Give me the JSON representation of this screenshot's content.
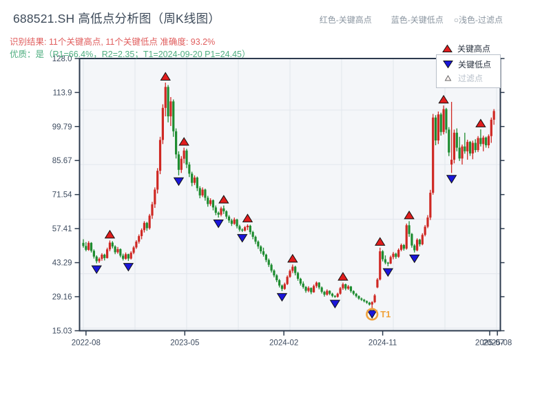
{
  "header": {
    "title": "688521.SH 高低点分析图（周K线图）",
    "subtitle_result": "识别结果: 11个关键高点, 11个关键低点  准确度: 93.2%",
    "subtitle_quality": "优质：是（R1=66.4%，R2=2.35；T1=2024-09-20 P1=24.45）",
    "legend_hint": {
      "high": "红色-关键高点",
      "low": "蓝色-关键低点",
      "filter": "○浅色-过滤点"
    }
  },
  "legend": {
    "items": [
      {
        "label": "关键高点",
        "marker": "triangle-up",
        "color": "#e11d1d"
      },
      {
        "label": "关键低点",
        "marker": "triangle-down",
        "color": "#1a16d9"
      },
      {
        "label": "过滤点",
        "marker": "triangle-up-hollow",
        "color": "#fdf4f2"
      }
    ]
  },
  "chart_data": {
    "type": "candlestick",
    "freq": "weekly",
    "period_start": "2022-08",
    "period_end": "2025-07",
    "ylim": [
      15.03,
      128.0
    ],
    "y_ticks": [
      {
        "v": 128.0,
        "label": "128.0"
      },
      {
        "v": 113.9,
        "label": "113.9"
      },
      {
        "v": 99.79,
        "label": "99.79"
      },
      {
        "v": 85.67,
        "label": "85.67"
      },
      {
        "v": 71.54,
        "label": "71.54"
      },
      {
        "v": 57.41,
        "label": "57.41"
      },
      {
        "v": 43.29,
        "label": "43.29"
      },
      {
        "v": 29.16,
        "label": "29.16"
      },
      {
        "v": 15.03,
        "label": "15.03"
      }
    ],
    "x_ticks": [
      {
        "label": "2022-08",
        "bar": 1
      },
      {
        "label": "2023-05",
        "bar": 38.3
      },
      {
        "label": "2024-02",
        "bar": 75.7
      },
      {
        "label": "2024-11",
        "bar": 113
      },
      {
        "label": "2025-07",
        "bar": 153.4
      },
      {
        "label": "2025-08",
        "bar": 156.3
      }
    ],
    "grid": {
      "v_bars": [
        0,
        19.5,
        39,
        58.5,
        78,
        97.5,
        117,
        136.5,
        156
      ],
      "h_prices": [
        106.6,
        84.0,
        61.3,
        38.7,
        16.1
      ]
    },
    "candles": [
      [
        51.5,
        53.0,
        49.5,
        50.2
      ],
      [
        50.2,
        51.8,
        48.0,
        48.6
      ],
      [
        48.6,
        52.2,
        48.2,
        51.5
      ],
      [
        51.5,
        51.8,
        47.5,
        48.2
      ],
      [
        48.2,
        48.8,
        45.0,
        45.8
      ],
      [
        45.8,
        46.3,
        43.0,
        43.9
      ],
      [
        43.9,
        45.5,
        43.2,
        44.9
      ],
      [
        44.9,
        47.2,
        44.1,
        46.6
      ],
      [
        46.6,
        47.0,
        44.2,
        45.2
      ],
      [
        45.2,
        49.5,
        45.0,
        48.8
      ],
      [
        48.8,
        52.5,
        48.0,
        51.6
      ],
      [
        51.6,
        52.2,
        49.2,
        50.0
      ],
      [
        50.0,
        50.5,
        46.8,
        47.6
      ],
      [
        47.6,
        49.8,
        47.0,
        48.9
      ],
      [
        48.9,
        49.2,
        45.5,
        46.2
      ],
      [
        46.2,
        47.0,
        44.2,
        44.9
      ],
      [
        44.9,
        47.5,
        44.5,
        46.8
      ],
      [
        46.8,
        47.0,
        44.0,
        45.0
      ],
      [
        45.0,
        48.0,
        44.6,
        47.4
      ],
      [
        47.4,
        50.2,
        46.8,
        49.6
      ],
      [
        49.6,
        52.6,
        49.0,
        52.0
      ],
      [
        52.0,
        55.0,
        51.2,
        54.3
      ],
      [
        54.3,
        57.5,
        53.0,
        56.8
      ],
      [
        56.8,
        60.5,
        55.8,
        59.8
      ],
      [
        59.8,
        60.2,
        56.5,
        57.6
      ],
      [
        57.6,
        63.5,
        57.0,
        62.8
      ],
      [
        62.8,
        68.5,
        61.5,
        67.5
      ],
      [
        67.5,
        74.5,
        66.0,
        73.6
      ],
      [
        73.6,
        82.5,
        72.0,
        81.4
      ],
      [
        81.4,
        95.5,
        80.0,
        94.2
      ],
      [
        94.2,
        109.0,
        92.5,
        107.5
      ],
      [
        107.5,
        118.0,
        104.0,
        116.2
      ],
      [
        116.2,
        117.0,
        101.5,
        104.0
      ],
      [
        104.0,
        112.0,
        100.0,
        110.2
      ],
      [
        110.2,
        111.0,
        95.5,
        97.8
      ],
      [
        97.8,
        99.0,
        86.5,
        88.2
      ],
      [
        88.2,
        89.5,
        79.5,
        81.8
      ],
      [
        81.8,
        87.5,
        80.5,
        86.4
      ],
      [
        86.4,
        91.0,
        84.5,
        89.8
      ],
      [
        89.8,
        90.5,
        82.5,
        84.0
      ],
      [
        84.0,
        85.0,
        78.8,
        80.2
      ],
      [
        80.2,
        81.0,
        75.0,
        76.4
      ],
      [
        76.4,
        79.5,
        75.5,
        78.6
      ],
      [
        78.6,
        79.0,
        73.0,
        74.2
      ],
      [
        74.2,
        75.0,
        70.0,
        71.2
      ],
      [
        71.2,
        74.5,
        70.5,
        73.6
      ],
      [
        73.6,
        74.0,
        69.0,
        70.2
      ],
      [
        70.2,
        71.0,
        66.5,
        67.6
      ],
      [
        67.6,
        70.0,
        66.8,
        69.2
      ],
      [
        69.2,
        69.5,
        65.0,
        66.2
      ],
      [
        66.2,
        67.0,
        63.0,
        64.0
      ],
      [
        64.0,
        64.5,
        62.0,
        63.2
      ],
      [
        63.2,
        66.5,
        62.5,
        65.8
      ],
      [
        65.8,
        67.0,
        63.5,
        64.6
      ],
      [
        64.6,
        65.0,
        61.5,
        62.4
      ],
      [
        62.4,
        63.0,
        59.8,
        60.8
      ],
      [
        60.8,
        61.5,
        58.5,
        59.4
      ],
      [
        59.4,
        62.0,
        59.0,
        61.2
      ],
      [
        61.2,
        61.5,
        57.5,
        58.4
      ],
      [
        58.4,
        59.0,
        56.2,
        57.0
      ],
      [
        57.0,
        57.5,
        56.0,
        56.6
      ],
      [
        56.6,
        58.5,
        56.2,
        58.0
      ],
      [
        58.0,
        59.2,
        56.8,
        58.6
      ],
      [
        58.6,
        59.0,
        55.0,
        56.0
      ],
      [
        56.0,
        56.5,
        53.0,
        54.0
      ],
      [
        54.0,
        54.5,
        51.0,
        52.0
      ],
      [
        52.0,
        52.5,
        49.0,
        50.0
      ],
      [
        50.0,
        50.5,
        47.0,
        48.0
      ],
      [
        48.0,
        49.5,
        45.8,
        46.6
      ],
      [
        46.6,
        47.0,
        43.5,
        44.4
      ],
      [
        44.4,
        45.0,
        41.5,
        42.4
      ],
      [
        42.4,
        43.0,
        39.2,
        40.0
      ],
      [
        40.0,
        40.5,
        37.2,
        38.0
      ],
      [
        38.0,
        38.5,
        35.2,
        36.0
      ],
      [
        36.0,
        36.5,
        33.0,
        33.8
      ],
      [
        33.8,
        34.2,
        31.5,
        32.4
      ],
      [
        32.4,
        35.0,
        32.0,
        34.4
      ],
      [
        34.4,
        38.0,
        34.0,
        37.4
      ],
      [
        37.4,
        40.5,
        37.0,
        39.9
      ],
      [
        39.9,
        42.5,
        39.0,
        41.6
      ],
      [
        41.6,
        42.0,
        38.0,
        39.0
      ],
      [
        39.0,
        39.5,
        35.8,
        36.6
      ],
      [
        36.6,
        37.0,
        33.8,
        34.6
      ],
      [
        34.6,
        35.5,
        32.5,
        33.2
      ],
      [
        33.2,
        33.6,
        30.8,
        31.6
      ],
      [
        31.6,
        33.5,
        31.0,
        32.8
      ],
      [
        32.8,
        33.0,
        30.2,
        31.0
      ],
      [
        31.0,
        34.2,
        30.8,
        33.6
      ],
      [
        33.6,
        35.5,
        32.8,
        35.0
      ],
      [
        35.0,
        35.2,
        32.2,
        33.0
      ],
      [
        33.0,
        33.4,
        30.5,
        31.2
      ],
      [
        31.2,
        31.6,
        29.2,
        30.0
      ],
      [
        30.0,
        32.2,
        29.6,
        31.6
      ],
      [
        31.6,
        31.8,
        29.8,
        30.4
      ],
      [
        30.4,
        30.8,
        28.9,
        29.5
      ],
      [
        29.5,
        29.8,
        28.7,
        29.1
      ],
      [
        29.1,
        30.8,
        28.8,
        30.4
      ],
      [
        30.4,
        33.2,
        30.0,
        32.7
      ],
      [
        32.7,
        35.0,
        32.0,
        34.3
      ],
      [
        34.3,
        34.6,
        31.8,
        32.5
      ],
      [
        32.5,
        34.0,
        32.0,
        33.4
      ],
      [
        33.4,
        33.6,
        30.8,
        31.5
      ],
      [
        31.5,
        31.8,
        29.8,
        30.4
      ],
      [
        30.4,
        30.7,
        28.8,
        29.4
      ],
      [
        29.4,
        29.7,
        27.9,
        28.4
      ],
      [
        28.4,
        28.8,
        27.4,
        27.9
      ],
      [
        27.9,
        28.2,
        26.8,
        27.3
      ],
      [
        27.3,
        27.6,
        26.2,
        26.7
      ],
      [
        26.7,
        27.0,
        25.5,
        25.9
      ],
      [
        25.9,
        27.3,
        24.45,
        26.9
      ],
      [
        26.9,
        30.3,
        26.5,
        29.7
      ],
      [
        33.0,
        36.9,
        32.7,
        36.3
      ],
      [
        36.3,
        49.5,
        35.9,
        48.0
      ],
      [
        48.0,
        48.5,
        43.8,
        44.7
      ],
      [
        44.7,
        46.3,
        42.6,
        43.3
      ],
      [
        43.3,
        43.6,
        41.8,
        42.9
      ],
      [
        42.9,
        46.2,
        42.7,
        45.6
      ],
      [
        45.6,
        47.7,
        44.7,
        47.0
      ],
      [
        47.0,
        47.4,
        44.9,
        45.7
      ],
      [
        45.7,
        49.2,
        45.3,
        48.6
      ],
      [
        48.6,
        51.2,
        48.0,
        50.6
      ],
      [
        50.6,
        51.0,
        48.3,
        49.1
      ],
      [
        49.1,
        59.5,
        48.7,
        58.8
      ],
      [
        58.8,
        60.5,
        54.0,
        55.2
      ],
      [
        55.2,
        55.6,
        49.5,
        50.4
      ],
      [
        50.4,
        51.0,
        47.5,
        48.4
      ],
      [
        48.4,
        53.4,
        48.0,
        52.8
      ],
      [
        52.8,
        53.2,
        50.0,
        50.9
      ],
      [
        50.9,
        55.5,
        50.5,
        54.8
      ],
      [
        54.8,
        58.9,
        54.2,
        58.2
      ],
      [
        58.2,
        63.0,
        57.6,
        62.0
      ],
      [
        62.0,
        73.5,
        61.0,
        72.3
      ],
      [
        72.3,
        105.0,
        71.5,
        103.5
      ],
      [
        103.5,
        104.5,
        92.0,
        94.0
      ],
      [
        94.0,
        106.0,
        92.5,
        104.8
      ],
      [
        104.8,
        105.5,
        96.0,
        97.5
      ],
      [
        97.5,
        108.5,
        96.5,
        107.0
      ],
      [
        107.0,
        107.5,
        97.0,
        98.5
      ],
      [
        98.5,
        99.5,
        87.5,
        89.0
      ],
      [
        84.0,
        110.0,
        80.5,
        86.0
      ],
      [
        86.0,
        98.5,
        84.5,
        97.2
      ],
      [
        97.2,
        99.0,
        89.5,
        91.0
      ],
      [
        91.0,
        95.5,
        85.5,
        86.5
      ],
      [
        86.5,
        92.3,
        84.0,
        91.5
      ],
      [
        91.5,
        97.2,
        88.5,
        89.5
      ],
      [
        89.5,
        94.3,
        86.0,
        93.4
      ],
      [
        93.4,
        93.8,
        87.6,
        88.6
      ],
      [
        88.6,
        93.9,
        86.2,
        93.0
      ],
      [
        93.0,
        94.5,
        89.0,
        90.0
      ],
      [
        90.0,
        95.8,
        89.2,
        95.0
      ],
      [
        95.0,
        98.6,
        91.5,
        92.5
      ],
      [
        92.5,
        96.0,
        89.5,
        95.2
      ],
      [
        95.2,
        95.6,
        91.0,
        92.0
      ],
      [
        92.0,
        96.5,
        90.8,
        95.8
      ],
      [
        95.8,
        103.5,
        93.0,
        102.6
      ],
      [
        102.6,
        107.0,
        100.5,
        106.2
      ]
    ],
    "key_highs": [
      {
        "i": 10,
        "p": 52.5
      },
      {
        "i": 31,
        "p": 118.0
      },
      {
        "i": 38,
        "p": 91.0
      },
      {
        "i": 53,
        "p": 67.0
      },
      {
        "i": 62,
        "p": 59.2
      },
      {
        "i": 79,
        "p": 42.5
      },
      {
        "i": 98,
        "p": 35.0
      },
      {
        "i": 112,
        "p": 49.5
      },
      {
        "i": 123,
        "p": 60.5
      },
      {
        "i": 136,
        "p": 108.5
      },
      {
        "i": 150,
        "p": 98.6
      }
    ],
    "key_lows": [
      {
        "i": 5,
        "p": 43.0
      },
      {
        "i": 17,
        "p": 44.0
      },
      {
        "i": 36,
        "p": 79.5
      },
      {
        "i": 51,
        "p": 62.0
      },
      {
        "i": 60,
        "p": 56.0
      },
      {
        "i": 75,
        "p": 31.5
      },
      {
        "i": 95,
        "p": 28.7
      },
      {
        "i": 109,
        "p": 24.45
      },
      {
        "i": 115,
        "p": 41.8
      },
      {
        "i": 125,
        "p": 47.5
      },
      {
        "i": 139,
        "p": 80.5
      }
    ],
    "t1": {
      "i": 109,
      "p": 24.45,
      "label": "T1"
    },
    "colors": {
      "up": "#cf2823",
      "down": "#1e8c30",
      "marker_high": "#e11d1d",
      "marker_low": "#1a16d9",
      "filter_marker": "#fdf4f2",
      "axis": "#2c3a4d",
      "tick_text": "#3e4c60",
      "grid": "#e4e8ee",
      "plot_bg": "#f4f6f9",
      "t1": "#f0a23c"
    }
  }
}
